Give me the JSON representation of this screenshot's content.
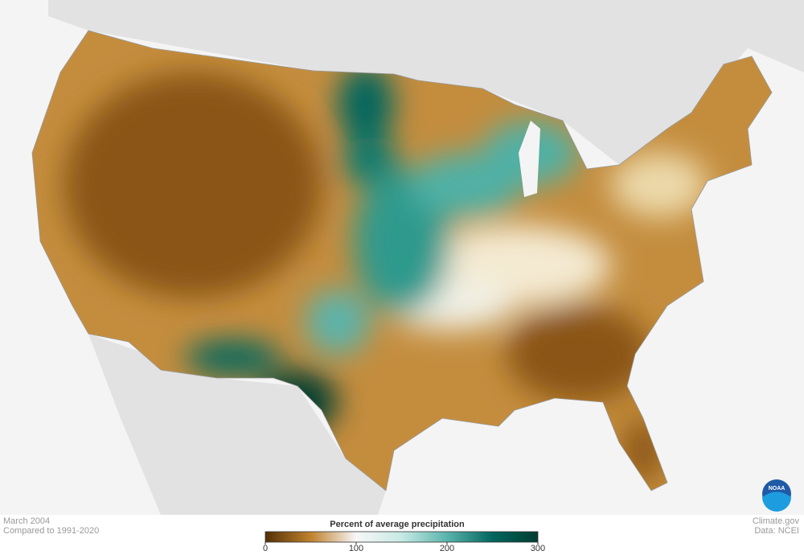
{
  "header": {
    "period": "March 2004",
    "baseline": "Compared to 1991-2020"
  },
  "legend": {
    "title": "Percent of average precipitation",
    "min": 0,
    "max": 300,
    "ticks": [
      0,
      100,
      200,
      300
    ],
    "colors": [
      "#543005",
      "#bf812d",
      "#f7f7f7",
      "#c7eae5",
      "#5ab4ac",
      "#01665e",
      "#003c30"
    ]
  },
  "credits": {
    "source": "Climate.gov",
    "data": "Data: NCEI",
    "logo": "NOAA"
  }
}
